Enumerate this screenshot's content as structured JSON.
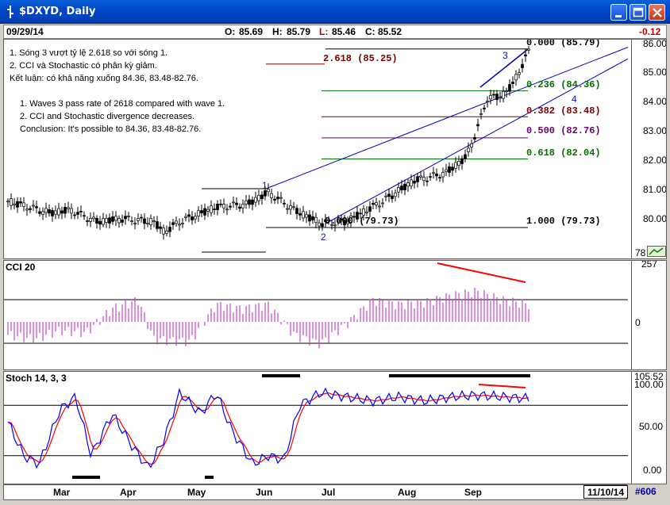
{
  "window": {
    "title": "$DXYD, Daily"
  },
  "quote": {
    "date": "09/29/14",
    "open_label": "O:",
    "open": "85.69",
    "high_label": "H:",
    "high": "85.79",
    "low_label": "L:",
    "low": "85.46",
    "close_label": "C:",
    "close": "85.52",
    "change": "-0.12"
  },
  "notes": {
    "vi": [
      "1. Sóng 3 vượt tỷ lệ 2.618 so với sóng 1.",
      "2. CCI và Stochastic có phân kỳ giảm.",
      "Kết luận: có khả năng xuống 84.36, 83.48-82.76."
    ],
    "en": [
      "1. Waves 3 pass rate of 2618 compared with wave 1.",
      "2. CCI and Stochastic divergence decreases.",
      "Conclusion: It's possible to 84.36, 83.48-82.76."
    ]
  },
  "fib_levels": [
    {
      "label": "0.000 (85.79)",
      "value": 85.79,
      "color": "#000000"
    },
    {
      "label": "0.236 (84.36)",
      "value": 84.36,
      "color": "#007000"
    },
    {
      "label": "0.382 (83.48)",
      "value": 83.48,
      "color": "#7a0000"
    },
    {
      "label": "0.500 (82.76)",
      "value": 82.76,
      "color": "#6a0070"
    },
    {
      "label": "0.618 (82.04)",
      "value": 82.04,
      "color": "#007000"
    },
    {
      "label": "1.000 (79.73)",
      "value": 79.73,
      "color": "#000000"
    }
  ],
  "ext_level": {
    "label": "2.618 (85.25)",
    "value": 85.25,
    "color": "#7a0000"
  },
  "extra_labels": {
    "left_fib": "0.000 (79.73)"
  },
  "waves": [
    "1",
    "2",
    "3",
    "4"
  ],
  "price_axis": {
    "ticks": [
      "86.00",
      "85.00",
      "84.00",
      "83.00",
      "82.00",
      "81.00",
      "80.00",
      "78"
    ],
    "values": [
      86,
      85,
      84,
      83,
      82,
      81,
      80,
      78
    ]
  },
  "cci_panel": {
    "title": "CCI 20",
    "ticks": [
      "257",
      "0"
    ]
  },
  "stoch_panel": {
    "title": "Stoch 14, 3, 3",
    "ticks": [
      "105.52",
      "100.00",
      "50.00",
      "0.00"
    ]
  },
  "x_axis": {
    "labels": [
      "Mar",
      "Apr",
      "May",
      "Jun",
      "Jul",
      "Aug",
      "Sep"
    ]
  },
  "status": {
    "date": "11/10/14",
    "code": "#606"
  },
  "colors": {
    "title_bar": "#0046c8",
    "price_bars": "#000000",
    "cci": "#cc44cc",
    "stoch_k": "#0000ff",
    "stoch_d": "#ff0000",
    "divergence": "#ff0000",
    "channel": "#0000c0"
  }
}
